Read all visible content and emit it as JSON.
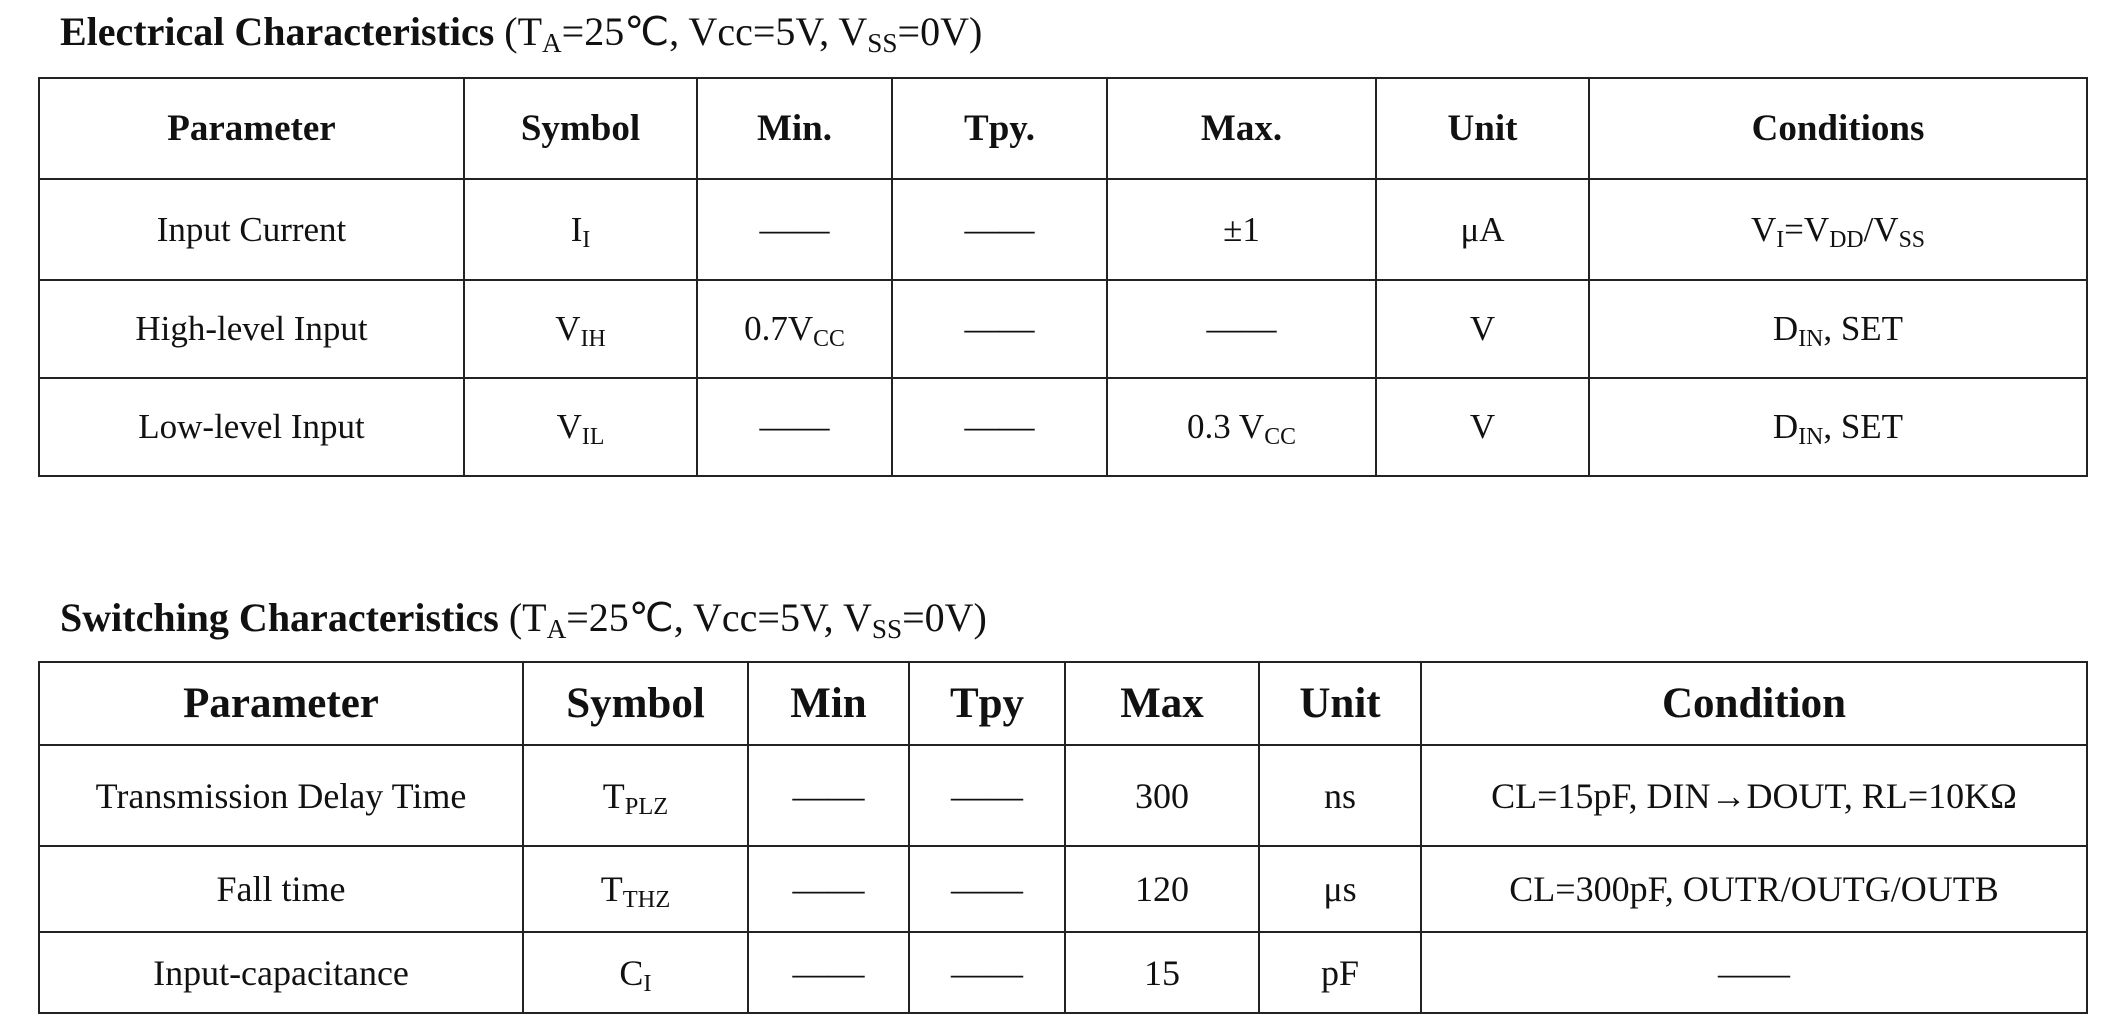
{
  "tables": [
    {
      "title": "Electrical Characteristics",
      "conditions": [
        " (T",
        {
          "sub": "A"
        },
        "=25℃, Vcc=5V, V",
        {
          "sub": "SS"
        },
        "=0V)"
      ],
      "header": [
        "Parameter",
        "Symbol",
        "Min.",
        "Tpy.",
        "Max.",
        "Unit",
        "Conditions"
      ],
      "rows": [
        [
          "Input Current",
          [
            "I",
            {
              "sub": "I"
            }
          ],
          "——",
          "——",
          "±1",
          "μA",
          [
            "V",
            {
              "sub": "I"
            },
            "=V",
            {
              "sub": "DD"
            },
            "/V",
            {
              "sub": "SS"
            }
          ]
        ],
        [
          "High-level Input",
          [
            "V",
            {
              "sub": "IH"
            }
          ],
          [
            "0.7V",
            {
              "sub": "CC"
            }
          ],
          "——",
          "——",
          "V",
          [
            "D",
            {
              "sub": "IN"
            },
            ", SET"
          ]
        ],
        [
          "Low-level Input",
          [
            "V",
            {
              "sub": "IL"
            }
          ],
          "——",
          "——",
          [
            "0.3 V",
            {
              "sub": "CC"
            }
          ],
          "V",
          [
            "D",
            {
              "sub": "IN"
            },
            ", SET"
          ]
        ]
      ]
    },
    {
      "title": "Switching Characteristics",
      "conditions": [
        " (T",
        {
          "sub": "A"
        },
        "=25℃, Vcc=5V, V",
        {
          "sub": "SS"
        },
        "=0V)"
      ],
      "header": [
        "Parameter",
        "Symbol",
        "Min",
        "Tpy",
        "Max",
        "Unit",
        "Condition"
      ],
      "rows": [
        [
          "Transmission Delay Time",
          [
            "T",
            {
              "sub": "PLZ"
            }
          ],
          "——",
          "——",
          "300",
          "ns",
          "CL=15pF, DIN→DOUT, RL=10KΩ"
        ],
        [
          "Fall time",
          [
            "T",
            {
              "sub": "THZ"
            }
          ],
          "——",
          "——",
          "120",
          "μs",
          "CL=300pF, OUTR/OUTG/OUTB"
        ],
        [
          "Input-capacitance",
          [
            "C",
            {
              "sub": "I"
            }
          ],
          "——",
          "——",
          "15",
          "pF",
          "——"
        ]
      ]
    }
  ]
}
